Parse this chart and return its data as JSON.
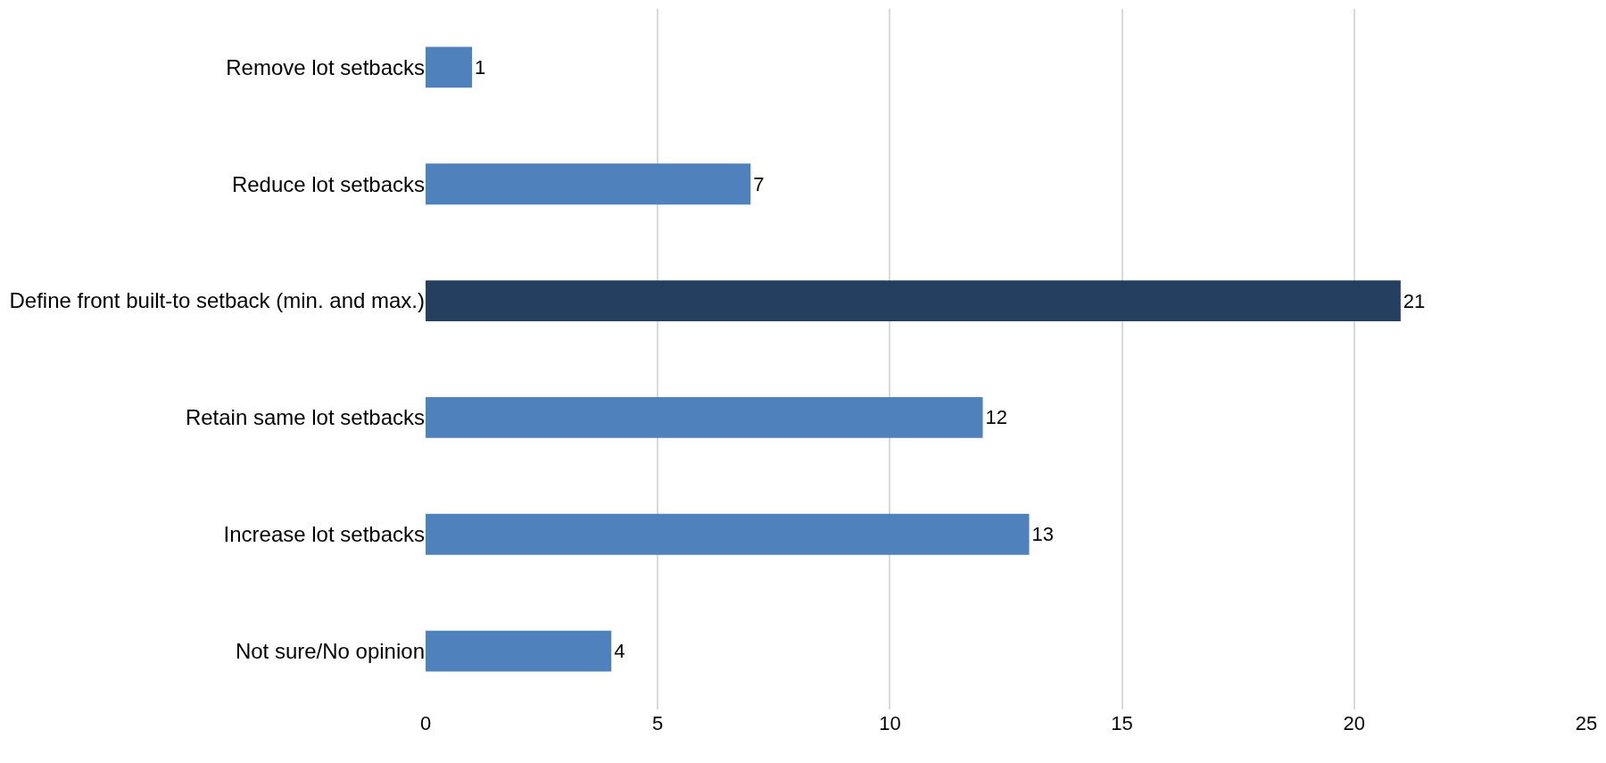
{
  "chart_data": {
    "type": "bar",
    "orientation": "horizontal",
    "categories": [
      "Remove lot setbacks",
      "Reduce lot setbacks",
      "Define front built-to setback (min. and max.)",
      "Retain same lot setbacks",
      "Increase lot setbacks",
      "Not sure/No opinion"
    ],
    "values": [
      1,
      7,
      21,
      12,
      13,
      4
    ],
    "colors": [
      "#4f81bd",
      "#4f81bd",
      "#243f60",
      "#4f81bd",
      "#4f81bd",
      "#4f81bd"
    ],
    "xlim": [
      0,
      25
    ],
    "xticks": [
      0,
      5,
      10,
      15,
      20,
      25
    ],
    "grid": "x",
    "data_labels": true
  }
}
